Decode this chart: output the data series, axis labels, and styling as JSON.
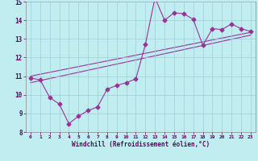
{
  "title": "",
  "xlabel": "Windchill (Refroidissement éolien,°C)",
  "ylabel": "",
  "bg_color": "#c0eef0",
  "grid_color": "#a0ccd8",
  "line_color": "#993399",
  "xlim": [
    -0.5,
    23.5
  ],
  "ylim": [
    8,
    15
  ],
  "xticks": [
    0,
    1,
    2,
    3,
    4,
    5,
    6,
    7,
    8,
    9,
    10,
    11,
    12,
    13,
    14,
    15,
    16,
    17,
    18,
    19,
    20,
    21,
    22,
    23
  ],
  "yticks": [
    8,
    9,
    10,
    11,
    12,
    13,
    14,
    15
  ],
  "series1_x": [
    0,
    1,
    2,
    3,
    4,
    5,
    6,
    7,
    8,
    9,
    10,
    11,
    12,
    13,
    14,
    15,
    16,
    17,
    18,
    19,
    20,
    21,
    22,
    23
  ],
  "series1_y": [
    10.9,
    10.8,
    9.85,
    9.5,
    8.45,
    8.85,
    9.15,
    9.35,
    10.3,
    10.5,
    10.65,
    10.85,
    12.7,
    15.2,
    14.0,
    14.4,
    14.35,
    14.05,
    12.65,
    13.55,
    13.5,
    13.8,
    13.55,
    13.4
  ],
  "series2_x": [
    0,
    23
  ],
  "series2_y": [
    11.0,
    13.35
  ],
  "series3_x": [
    0,
    23
  ],
  "series3_y": [
    10.65,
    13.2
  ],
  "marker": "D",
  "markersize": 2.5,
  "linewidth": 0.8
}
